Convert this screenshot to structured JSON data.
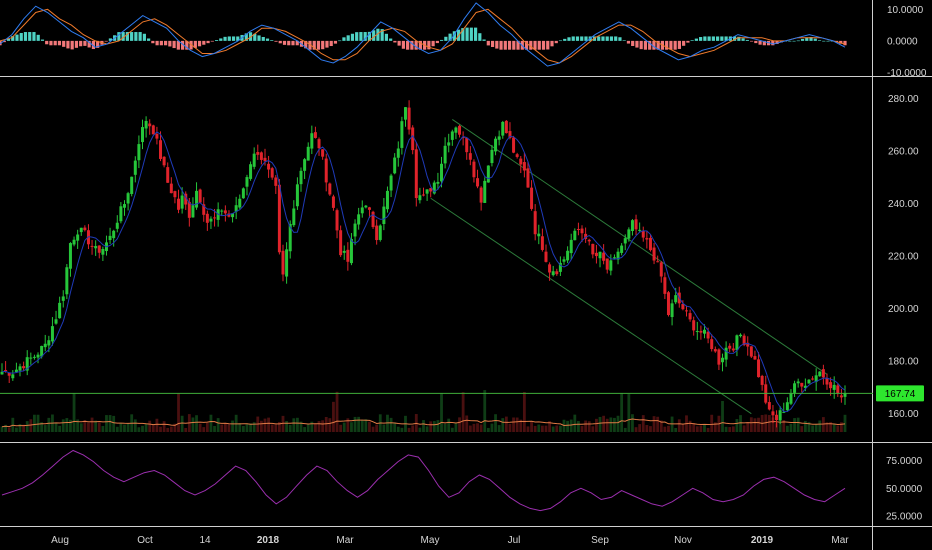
{
  "colors": {
    "background": "#000000",
    "up": "#26c63a",
    "down": "#e0232b",
    "macd_line": "#2f7cf0",
    "signal_line": "#f07a2b",
    "hist_up": "#4fd3c4",
    "hist_down": "#f2787a",
    "ma_line": "#1f3ab8",
    "volume_ma": "#e07a45",
    "rsi": "#9b2fae",
    "channel": "#2c7a3a",
    "price_line": "#3fae3a",
    "price_label_bg": "#2ee62e",
    "price_label_text": "#000000"
  },
  "chart_data": [
    {
      "type": "line",
      "panel": "macd",
      "ylim": [
        -10.5,
        12
      ],
      "tick_labels": [
        "10.0000",
        "0.0000",
        "-10.0000"
      ],
      "tick_values": [
        10,
        0,
        -10
      ],
      "series": [
        {
          "role": "macd",
          "values": [
            -1,
            2,
            7,
            11,
            9,
            6,
            3,
            1,
            -2,
            -1,
            2,
            5,
            8,
            6,
            4,
            0,
            -3,
            -5,
            -4,
            -2,
            0,
            3,
            5,
            4,
            2,
            0,
            -3,
            -6,
            -7,
            -5,
            -2,
            2,
            6,
            4,
            1,
            -2,
            -4,
            -3,
            1,
            7,
            12,
            9,
            5,
            2,
            -2,
            -5,
            -8,
            -7,
            -4,
            -1,
            2,
            4,
            6,
            4,
            1,
            -2,
            -4,
            -6,
            -5,
            -3,
            -2,
            0,
            2,
            1,
            0,
            -1,
            0,
            1,
            2,
            1,
            0,
            -2
          ]
        },
        {
          "role": "signal",
          "values": [
            0,
            1,
            5,
            9,
            10,
            7,
            5,
            2,
            0,
            -1,
            0,
            3,
            6,
            7,
            5,
            2,
            -1,
            -4,
            -4,
            -3,
            -1,
            1,
            4,
            4,
            3,
            1,
            -1,
            -4,
            -6,
            -6,
            -4,
            0,
            3,
            4,
            3,
            0,
            -2,
            -3,
            -1,
            4,
            9,
            10,
            7,
            4,
            0,
            -3,
            -6,
            -7,
            -5,
            -2,
            1,
            3,
            5,
            5,
            3,
            0,
            -2,
            -4,
            -5,
            -4,
            -3,
            -1,
            1,
            1,
            1,
            0,
            0,
            1,
            1,
            1,
            0,
            -1
          ]
        }
      ]
    },
    {
      "type": "candlestick",
      "panel": "price",
      "ylim": [
        150,
        287
      ],
      "x_tick_labels": [
        "Aug",
        "Oct",
        "14",
        "2018",
        "Mar",
        "May",
        "Jul",
        "Sep",
        "Nov",
        "2019",
        "Mar"
      ],
      "y_tick_labels": [
        "280.00",
        "260.00",
        "240.00",
        "220.00",
        "200.00",
        "180.00",
        "160.00"
      ],
      "y_tick_values": [
        280,
        260,
        240,
        220,
        200,
        180,
        160
      ],
      "last_price": 167.74,
      "last_price_label": "167.74",
      "close_path": [
        [
          0,
          176
        ],
        [
          3,
          176
        ],
        [
          6,
          179
        ],
        [
          9,
          182
        ],
        [
          12,
          186
        ],
        [
          15,
          197
        ],
        [
          17,
          206
        ],
        [
          19,
          225
        ],
        [
          21,
          230
        ],
        [
          23,
          228
        ],
        [
          26,
          222
        ],
        [
          28,
          223
        ],
        [
          30,
          227
        ],
        [
          32,
          234
        ],
        [
          34,
          240
        ],
        [
          36,
          250
        ],
        [
          38,
          264
        ],
        [
          40,
          272
        ],
        [
          42,
          268
        ],
        [
          44,
          258
        ],
        [
          46,
          248
        ],
        [
          48,
          242
        ],
        [
          49,
          238
        ],
        [
          50,
          242
        ],
        [
          52,
          236
        ],
        [
          54,
          245
        ],
        [
          55,
          242
        ],
        [
          57,
          233
        ],
        [
          59,
          234
        ],
        [
          61,
          238
        ],
        [
          63,
          235
        ],
        [
          65,
          238
        ],
        [
          67,
          246
        ],
        [
          69,
          256
        ],
        [
          71,
          260
        ],
        [
          73,
          255
        ],
        [
          75,
          248
        ],
        [
          76,
          245
        ],
        [
          77,
          220
        ],
        [
          78,
          212
        ],
        [
          80,
          232
        ],
        [
          82,
          248
        ],
        [
          84,
          258
        ],
        [
          86,
          266
        ],
        [
          88,
          262
        ],
        [
          90,
          250
        ],
        [
          92,
          238
        ],
        [
          94,
          222
        ],
        [
          96,
          218
        ],
        [
          98,
          232
        ],
        [
          100,
          240
        ],
        [
          102,
          236
        ],
        [
          104,
          228
        ],
        [
          106,
          238
        ],
        [
          108,
          250
        ],
        [
          110,
          262
        ],
        [
          112,
          278
        ],
        [
          114,
          262
        ],
        [
          115,
          244
        ],
        [
          117,
          242
        ],
        [
          119,
          246
        ],
        [
          121,
          250
        ],
        [
          123,
          262
        ],
        [
          125,
          268
        ],
        [
          126,
          270
        ],
        [
          128,
          264
        ],
        [
          130,
          258
        ],
        [
          132,
          246
        ],
        [
          133,
          242
        ],
        [
          135,
          256
        ],
        [
          137,
          265
        ],
        [
          139,
          270
        ],
        [
          141,
          264
        ],
        [
          143,
          256
        ],
        [
          145,
          252
        ],
        [
          146,
          247
        ],
        [
          148,
          230
        ],
        [
          150,
          224
        ],
        [
          152,
          215
        ],
        [
          154,
          215
        ],
        [
          156,
          219
        ],
        [
          158,
          226
        ],
        [
          160,
          230
        ],
        [
          162,
          228
        ],
        [
          164,
          220
        ],
        [
          166,
          220
        ],
        [
          168,
          215
        ],
        [
          170,
          218
        ],
        [
          171,
          222
        ],
        [
          173,
          226
        ],
        [
          175,
          232
        ],
        [
          177,
          228
        ],
        [
          179,
          225
        ],
        [
          181,
          220
        ],
        [
          183,
          212
        ],
        [
          185,
          198
        ],
        [
          187,
          204
        ],
        [
          189,
          200
        ],
        [
          191,
          195
        ],
        [
          193,
          192
        ],
        [
          195,
          190
        ],
        [
          197,
          186
        ],
        [
          199,
          180
        ],
        [
          201,
          185
        ],
        [
          203,
          186
        ],
        [
          205,
          190
        ],
        [
          207,
          186
        ],
        [
          209,
          180
        ],
        [
          211,
          170
        ],
        [
          213,
          160
        ],
        [
          215,
          158
        ],
        [
          217,
          162
        ],
        [
          219,
          168
        ],
        [
          221,
          172
        ],
        [
          223,
          172
        ],
        [
          225,
          174
        ],
        [
          227,
          176
        ],
        [
          229,
          173
        ],
        [
          231,
          170
        ],
        [
          233,
          166
        ],
        [
          234,
          166
        ],
        [
          235,
          168
        ]
      ],
      "channel_upper": [
        [
          125,
          272
        ],
        [
          229,
          175
        ]
      ],
      "channel_lower": [
        [
          119,
          242
        ],
        [
          208,
          160
        ]
      ],
      "ma_window": 6
    },
    {
      "type": "line",
      "panel": "rsi",
      "ylim": [
        18,
        88
      ],
      "tick_labels": [
        "75.0000",
        "50.0000",
        "25.0000"
      ],
      "tick_values": [
        75,
        50,
        25
      ],
      "values": [
        44,
        47,
        50,
        55,
        62,
        70,
        78,
        84,
        80,
        74,
        66,
        60,
        56,
        60,
        64,
        66,
        62,
        55,
        48,
        44,
        48,
        54,
        62,
        70,
        66,
        56,
        44,
        36,
        42,
        52,
        62,
        70,
        66,
        56,
        48,
        42,
        48,
        58,
        66,
        74,
        80,
        78,
        66,
        52,
        42,
        46,
        56,
        62,
        58,
        50,
        42,
        36,
        32,
        30,
        32,
        38,
        46,
        50,
        46,
        40,
        42,
        48,
        44,
        40,
        36,
        34,
        38,
        44,
        50,
        46,
        40,
        38,
        40,
        44,
        52,
        58,
        60,
        56,
        50,
        44,
        40,
        38,
        44,
        50
      ]
    }
  ]
}
